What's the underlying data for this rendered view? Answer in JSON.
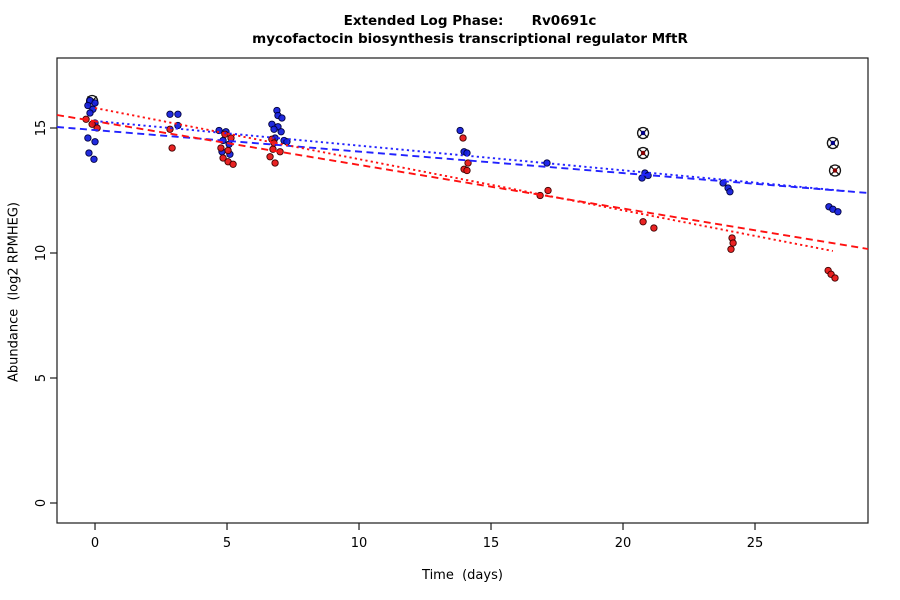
{
  "title": {
    "line1": "Extended Log Phase:      Rv0691c",
    "line2": "mycofactocin biosynthesis transcriptional regulator MftR"
  },
  "chart_data": {
    "type": "scatter",
    "title": "Extended Log Phase: Rv0691c — mycofactocin biosynthesis transcriptional regulator MftR",
    "xlabel": "Time  (days)",
    "ylabel": "Abundance  (log2 RPMHEG)",
    "xlim": [
      -1.44,
      29.28
    ],
    "ylim": [
      -0.8,
      17.8
    ],
    "x_ticks": [
      0,
      5,
      10,
      15,
      20,
      25
    ],
    "y_ticks": [
      0,
      5,
      10,
      15
    ],
    "grid": false,
    "legend": "none",
    "series": [
      {
        "name": "blue-samples",
        "color": "#1520dc",
        "edge_color": "#00003c",
        "points": [
          [
            -0.19,
            16.1
          ],
          [
            0.0,
            16.0
          ],
          [
            -0.27,
            15.9
          ],
          [
            -0.08,
            15.75
          ],
          [
            -0.19,
            15.6
          ],
          [
            0.0,
            15.2
          ],
          [
            -0.27,
            14.6
          ],
          [
            0.0,
            14.45
          ],
          [
            -0.23,
            14.0
          ],
          [
            -0.04,
            13.75
          ],
          [
            2.84,
            15.55
          ],
          [
            3.14,
            15.55
          ],
          [
            3.14,
            15.1
          ],
          [
            4.7,
            14.9
          ],
          [
            4.96,
            14.85
          ],
          [
            4.85,
            14.5
          ],
          [
            5.08,
            14.35
          ],
          [
            4.81,
            14.05
          ],
          [
            5.11,
            13.95
          ],
          [
            6.89,
            15.7
          ],
          [
            6.93,
            15.5
          ],
          [
            7.08,
            15.4
          ],
          [
            6.7,
            15.15
          ],
          [
            6.93,
            15.05
          ],
          [
            6.78,
            14.95
          ],
          [
            7.05,
            14.85
          ],
          [
            6.82,
            14.6
          ],
          [
            7.16,
            14.5
          ],
          [
            7.27,
            14.45
          ],
          [
            13.83,
            14.9
          ],
          [
            13.98,
            14.05
          ],
          [
            14.09,
            14.0
          ],
          [
            17.12,
            13.6
          ],
          [
            20.83,
            13.2
          ],
          [
            20.95,
            13.1
          ],
          [
            20.72,
            13.0
          ],
          [
            23.79,
            12.8
          ],
          [
            23.98,
            12.6
          ],
          [
            24.05,
            12.45
          ],
          [
            27.8,
            11.85
          ],
          [
            27.95,
            11.75
          ],
          [
            28.14,
            11.65
          ]
        ]
      },
      {
        "name": "red-samples",
        "color": "#e81717",
        "edge_color": "#3c0000",
        "points": [
          [
            -0.34,
            15.35
          ],
          [
            -0.11,
            15.15
          ],
          [
            0.08,
            15.0
          ],
          [
            2.84,
            14.95
          ],
          [
            2.92,
            14.2
          ],
          [
            4.92,
            14.75
          ],
          [
            5.15,
            14.6
          ],
          [
            4.77,
            14.2
          ],
          [
            5.04,
            14.1
          ],
          [
            4.85,
            13.8
          ],
          [
            5.04,
            13.65
          ],
          [
            5.23,
            13.55
          ],
          [
            6.7,
            14.55
          ],
          [
            6.78,
            14.4
          ],
          [
            6.74,
            14.15
          ],
          [
            7.01,
            14.05
          ],
          [
            6.63,
            13.85
          ],
          [
            6.82,
            13.6
          ],
          [
            13.94,
            14.6
          ],
          [
            14.13,
            13.6
          ],
          [
            13.98,
            13.35
          ],
          [
            14.09,
            13.3
          ],
          [
            17.16,
            12.5
          ],
          [
            16.86,
            12.3
          ],
          [
            20.76,
            11.25
          ],
          [
            21.17,
            11.0
          ],
          [
            24.13,
            10.6
          ],
          [
            24.17,
            10.4
          ],
          [
            24.09,
            10.15
          ],
          [
            27.77,
            9.3
          ],
          [
            27.88,
            9.15
          ],
          [
            28.03,
            9.0
          ]
        ]
      },
      {
        "name": "blue-flagged-outliers",
        "marker": "circle-x",
        "color": "#00008b",
        "points": [
          [
            -0.11,
            16.08
          ],
          [
            20.76,
            14.8
          ],
          [
            27.95,
            14.4
          ]
        ]
      },
      {
        "name": "red-flagged-outliers",
        "marker": "circle-x",
        "color": "#8b0000",
        "points": [
          [
            20.76,
            14.0
          ],
          [
            28.03,
            13.3
          ]
        ]
      }
    ],
    "trend_lines": [
      {
        "name": "blue-dashed-fit",
        "color": "#2222ff",
        "style": "dashed",
        "from": [
          -1.44,
          15.04
        ],
        "to": [
          29.28,
          12.4
        ]
      },
      {
        "name": "blue-dotted-fit",
        "color": "#2222ff",
        "style": "dotted",
        "from": [
          0,
          15.28
        ],
        "to": [
          28.4,
          12.48
        ]
      },
      {
        "name": "red-dashed-fit",
        "color": "#ff1111",
        "style": "dashed",
        "from": [
          -1.44,
          15.52
        ],
        "to": [
          29.28,
          10.16
        ]
      },
      {
        "name": "red-dotted-fit",
        "color": "#ff1111",
        "style": "dotted",
        "from": [
          0,
          15.8
        ],
        "to": [
          27.95,
          10.08
        ]
      }
    ]
  },
  "colors": {
    "background": "#ffffff",
    "axis": "#1a1a1a",
    "blue_series": "#1520dc",
    "red_series": "#e81717",
    "blue_line": "#2222ff",
    "red_line": "#ff1111",
    "flagged_blue_center": "#00008b",
    "flagged_red_center": "#8b0000"
  }
}
